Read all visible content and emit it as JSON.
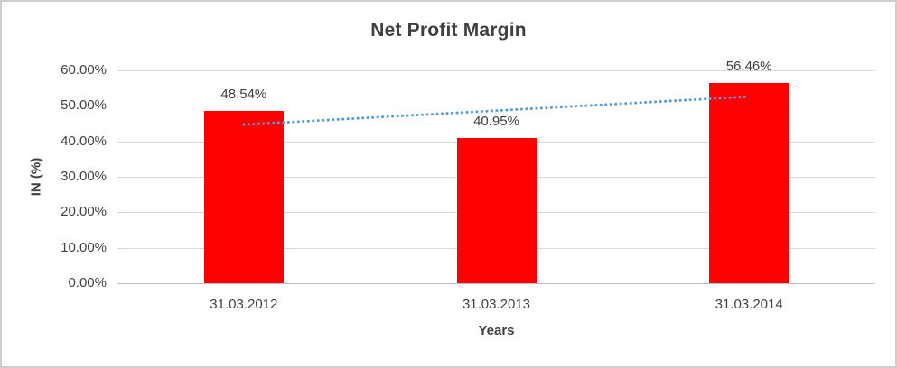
{
  "chart_data": {
    "type": "bar",
    "title": "Net Profit Margin",
    "xlabel": "Years",
    "ylabel": "IN (%)",
    "categories": [
      "31.03.2012",
      "31.03.2013",
      "31.03.2014"
    ],
    "values": [
      48.54,
      40.95,
      56.46
    ],
    "data_labels": [
      "48.54%",
      "40.95%",
      "56.46%"
    ],
    "ylim": [
      0,
      60
    ],
    "yticks": [
      0,
      10,
      20,
      30,
      40,
      50,
      60
    ],
    "ytick_labels": [
      "0.00%",
      "10.00%",
      "20.00%",
      "30.00%",
      "40.00%",
      "50.00%",
      "60.00%"
    ],
    "grid": true,
    "legend": "none",
    "bar_color": "#FF0000",
    "gridline_color": "#d9d9d9",
    "axis_line_color": "#bfbfbf",
    "text_color": "#404040",
    "trendline": {
      "type": "linear",
      "style": "dotted",
      "color": "#5B9BD5",
      "start_value": 44.7,
      "end_value": 52.6
    }
  }
}
